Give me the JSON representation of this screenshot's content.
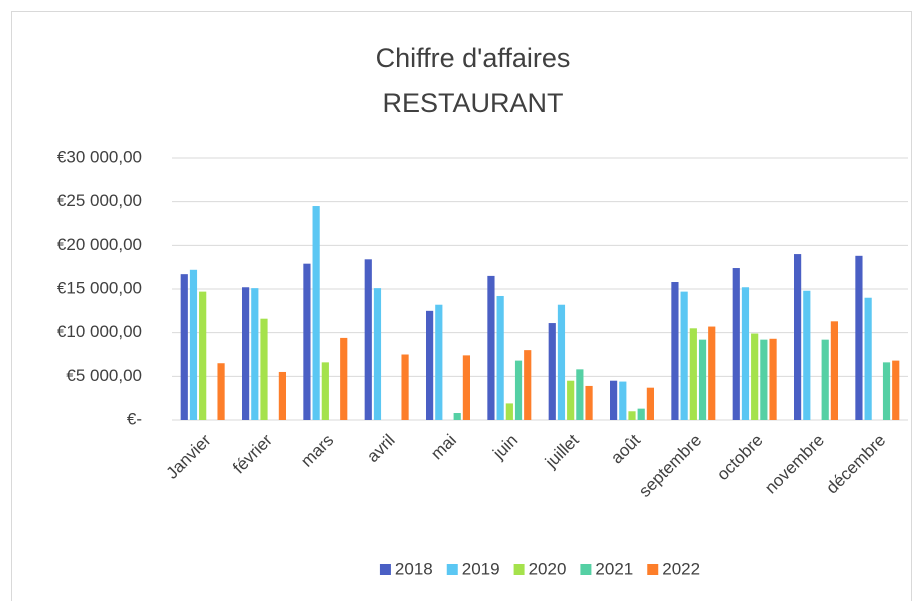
{
  "chart_data": {
    "type": "bar",
    "title": "Chiffre d'affaires",
    "subtitle": "RESTAURANT",
    "categories": [
      "Janvier",
      "février",
      "mars",
      "avril",
      "mai",
      "juin",
      "juillet",
      "août",
      "septembre",
      "octobre",
      "novembre",
      "décembre"
    ],
    "series": [
      {
        "name": "2018",
        "color": "#4a5fc4",
        "values": [
          16700,
          15200,
          17900,
          18400,
          12500,
          16500,
          11100,
          4500,
          15800,
          17400,
          19000,
          18800
        ]
      },
      {
        "name": "2019",
        "color": "#5bc7f3",
        "values": [
          17200,
          15100,
          24500,
          15100,
          13200,
          14200,
          13200,
          4400,
          14700,
          15200,
          14800,
          14000
        ]
      },
      {
        "name": "2020",
        "color": "#a5e24c",
        "values": [
          14700,
          11600,
          6600,
          null,
          null,
          1900,
          4500,
          1000,
          10500,
          9900,
          null,
          null
        ]
      },
      {
        "name": "2021",
        "color": "#55d0a4",
        "values": [
          null,
          null,
          null,
          null,
          800,
          6800,
          5800,
          1300,
          9200,
          9200,
          9200,
          6600
        ]
      },
      {
        "name": "2022",
        "color": "#fd7e2a",
        "values": [
          6500,
          5500,
          9400,
          7500,
          7400,
          8000,
          3900,
          3700,
          10700,
          9300,
          11300,
          6800
        ]
      }
    ],
    "ylim": [
      0,
      30000
    ],
    "yticks": [
      {
        "value": 0,
        "label": "€-"
      },
      {
        "value": 5000,
        "label": "€5 000,00"
      },
      {
        "value": 10000,
        "label": "€10 000,00"
      },
      {
        "value": 15000,
        "label": "€15 000,00"
      },
      {
        "value": 20000,
        "label": "€20 000,00"
      },
      {
        "value": 25000,
        "label": "€25 000,00"
      },
      {
        "value": 30000,
        "label": "€30 000,00"
      }
    ],
    "grid": true,
    "legend": "bottom"
  }
}
